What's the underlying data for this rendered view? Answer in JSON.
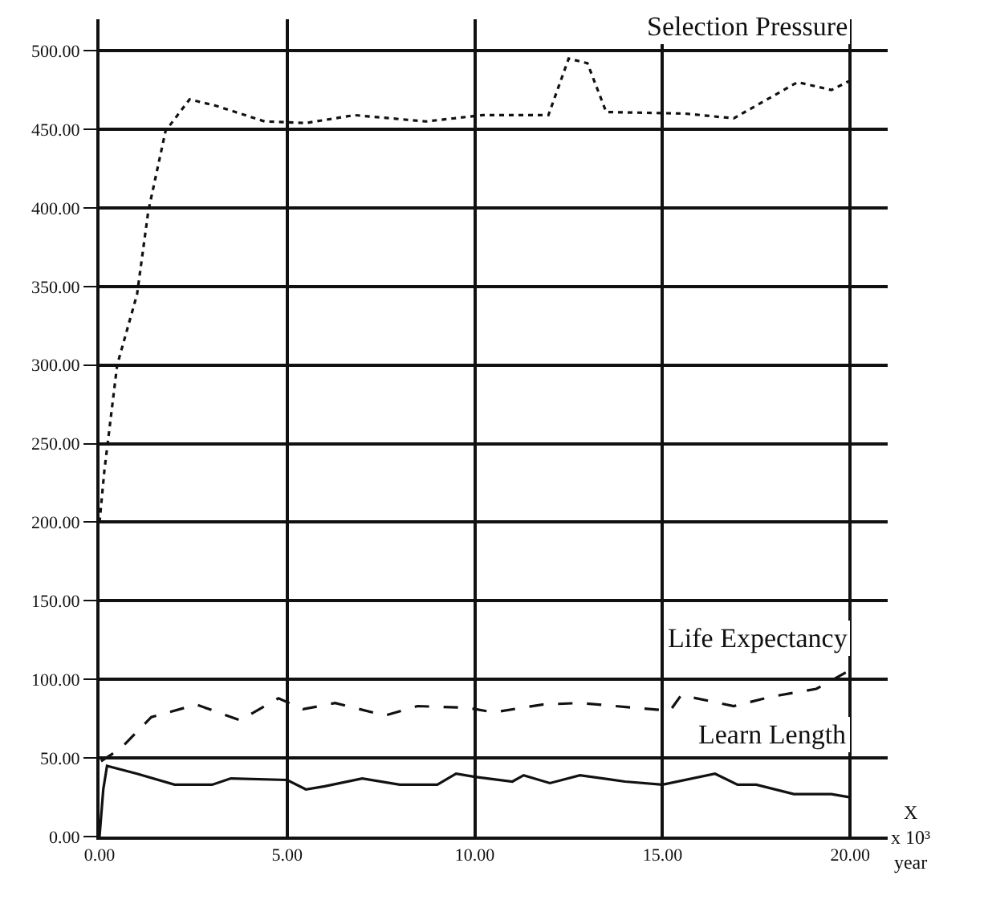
{
  "chart_data": {
    "type": "line",
    "xlabel": "X x 10³ year",
    "xlim": [
      0,
      21
    ],
    "ylim": [
      0,
      520
    ],
    "xticks": [
      {
        "value": 0,
        "label": "0.00"
      },
      {
        "value": 5,
        "label": "5.00"
      },
      {
        "value": 10,
        "label": "10.00"
      },
      {
        "value": 15,
        "label": "15.00"
      },
      {
        "value": 20,
        "label": "20.00"
      }
    ],
    "yticks": [
      {
        "value": 0,
        "label": "0.00"
      },
      {
        "value": 50,
        "label": "50.00"
      },
      {
        "value": 100,
        "label": "100.00"
      },
      {
        "value": 150,
        "label": "150.00"
      },
      {
        "value": 200,
        "label": "200.00"
      },
      {
        "value": 250,
        "label": "250.00"
      },
      {
        "value": 300,
        "label": "300.00"
      },
      {
        "value": 350,
        "label": "350.00"
      },
      {
        "value": 400,
        "label": "400.00"
      },
      {
        "value": 450,
        "label": "450.00"
      },
      {
        "value": 500,
        "label": "500.00"
      }
    ],
    "grid": true,
    "legend": false,
    "marker": "none",
    "series": [
      {
        "name": "Selection Pressure",
        "color": "#111111",
        "line_style": "dotted",
        "x": [
          0,
          0.13,
          0.47,
          1.0,
          1.3,
          1.76,
          2.4,
          3.1,
          4.4,
          5.5,
          6.8,
          8.7,
          10.2,
          11.96,
          12.5,
          13.0,
          13.5,
          15.6,
          16.9,
          18.6,
          19.5,
          20
        ],
        "values": [
          200,
          233,
          300,
          345,
          398,
          449,
          469,
          465,
          455,
          454,
          459,
          455,
          459,
          459,
          495,
          492,
          461,
          460,
          457,
          480,
          475,
          481
        ]
      },
      {
        "name": "Life Expectancy",
        "color": "#111111",
        "line_style": "dashed",
        "x": [
          0.04,
          0.56,
          1.38,
          2.58,
          3.74,
          4.77,
          5.42,
          6.28,
          7.61,
          8.47,
          9.8,
          10.5,
          11.8,
          12.8,
          15.2,
          15.5,
          16.9,
          17.9,
          19.1,
          20
        ],
        "values": [
          48,
          56,
          76,
          84,
          74,
          88,
          81,
          85,
          77,
          83,
          82,
          79,
          84,
          85,
          80,
          90,
          83,
          89,
          94,
          106
        ]
      },
      {
        "name": "Learn Length",
        "color": "#111111",
        "line_style": "solid",
        "x": [
          0,
          0.1,
          0.2,
          1,
          2,
          3,
          3.5,
          5,
          5.5,
          6,
          7,
          8,
          9,
          9.5,
          10,
          11,
          11.3,
          12,
          12.8,
          14,
          15,
          16.4,
          17,
          17.5,
          18.5,
          19.5,
          20
        ],
        "values": [
          0,
          30,
          45,
          40,
          33,
          33,
          37,
          36,
          30,
          32,
          37,
          33,
          33,
          40,
          38,
          35,
          39,
          34,
          39,
          35,
          33,
          40,
          33,
          33,
          27,
          27,
          25
        ]
      }
    ]
  }
}
